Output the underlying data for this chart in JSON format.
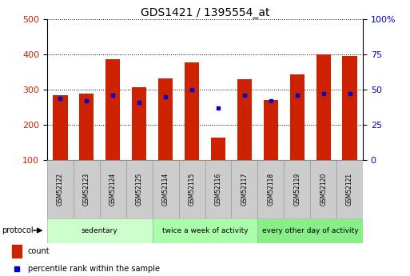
{
  "title": "GDS1421 / 1395554_at",
  "samples": [
    "GSM52122",
    "GSM52123",
    "GSM52124",
    "GSM52125",
    "GSM52114",
    "GSM52115",
    "GSM52116",
    "GSM52117",
    "GSM52118",
    "GSM52119",
    "GSM52120",
    "GSM52121"
  ],
  "counts": [
    285,
    288,
    386,
    306,
    333,
    378,
    163,
    329,
    271,
    344,
    401,
    395
  ],
  "percentile_ranks": [
    44,
    42,
    46,
    41,
    45,
    50,
    37,
    46,
    42,
    46,
    47,
    47
  ],
  "bar_bottom": 100,
  "ylim_left": [
    100,
    500
  ],
  "ylim_right": [
    0,
    100
  ],
  "yticks_left": [
    100,
    200,
    300,
    400,
    500
  ],
  "yticks_right": [
    0,
    25,
    50,
    75,
    100
  ],
  "bar_color": "#cc2200",
  "percentile_color": "#0000cc",
  "groups": [
    {
      "label": "sedentary",
      "indices": [
        0,
        1,
        2,
        3
      ],
      "color": "#ccffcc"
    },
    {
      "label": "twice a week of activity",
      "indices": [
        4,
        5,
        6,
        7
      ],
      "color": "#aaffaa"
    },
    {
      "label": "every other day of activity",
      "indices": [
        8,
        9,
        10,
        11
      ],
      "color": "#88ee88"
    }
  ],
  "protocol_label": "protocol",
  "legend_count_label": "count",
  "legend_percentile_label": "percentile rank within the sample",
  "tick_label_color_left": "#cc2200",
  "tick_label_color_right": "#0000cc",
  "bar_width": 0.55,
  "sample_bg": "#cccccc"
}
